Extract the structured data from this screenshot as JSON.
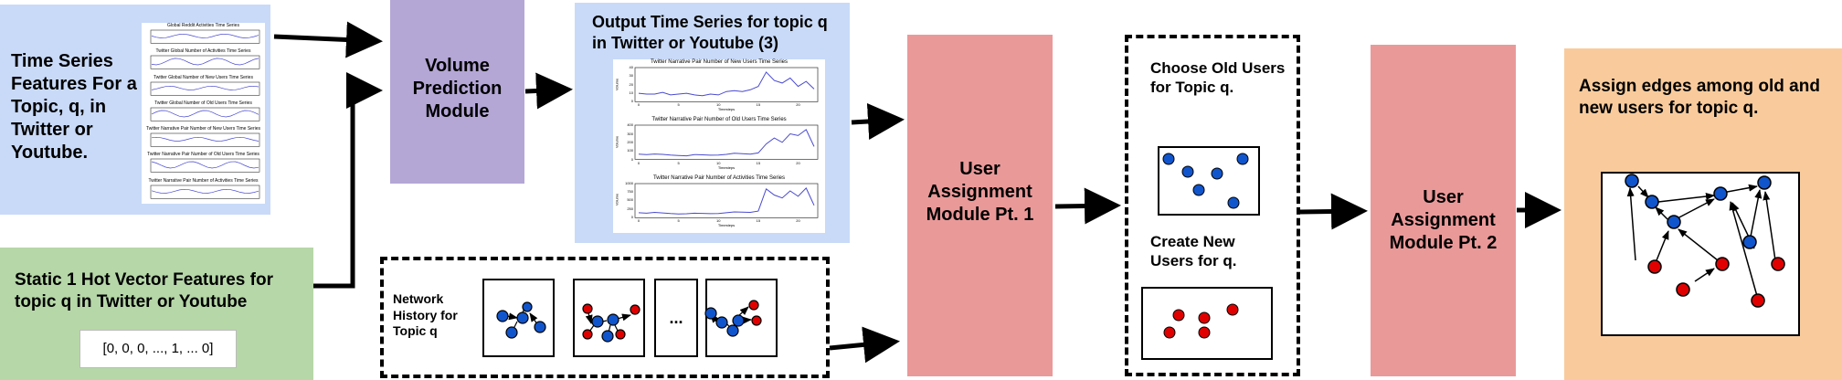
{
  "colors": {
    "blue_panel": "#c9daf8",
    "green_panel": "#b6d7a8",
    "purple_panel": "#b4a7d6",
    "red_panel": "#ea9999",
    "orange_panel": "#f9cb9c",
    "node_blue": "#1155cc",
    "node_red": "#e00000",
    "line_blue": "#4a4ad0"
  },
  "features": {
    "title": "Time Series Features For a Topic, q, in Twitter or Youtube.",
    "thumb_titles": [
      "Global Reddit Activities Time Series",
      "Twitter Global Number of Activities Time Series",
      "Twitter Global Number of New Users Time Series",
      "Twitter Global Number of Old Users Time Series",
      "Twitter Narrative Pair Number of New Users Time Series",
      "Twitter Narrative Pair Number of Old Users Time Series",
      "Twitter Narrative Pair Number of Activities Time Series"
    ]
  },
  "static": {
    "title": "Static 1 Hot Vector Features for topic q in Twitter or Youtube",
    "vector": "[0, 0, 0, ..., 1, ... 0]"
  },
  "volume": {
    "title": "Volume Prediction Module"
  },
  "output": {
    "title": "Output Time Series for topic q in Twitter or Youtube (3)",
    "charts": [
      {
        "title": "Twitter Narrative Pair Number of New Users Time Series",
        "values": [
          10,
          9,
          9,
          11,
          8,
          9,
          10,
          8,
          7,
          9,
          8,
          12,
          13,
          12,
          14,
          18,
          35,
          25,
          22,
          28,
          18,
          24,
          15
        ],
        "y_ticks": [
          "0",
          "10",
          "20",
          "30",
          "40"
        ]
      },
      {
        "title": "Twitter Narrative Pair Number of Old Users Time Series",
        "values": [
          60,
          55,
          62,
          58,
          50,
          45,
          40,
          55,
          52,
          48,
          50,
          58,
          70,
          65,
          60,
          75,
          180,
          250,
          200,
          300,
          280,
          350,
          150
        ],
        "y_ticks": [
          "0",
          "100",
          "200",
          "300",
          "400"
        ]
      },
      {
        "title": "Twitter Narrative Pair Number of Activities Time Series",
        "values": [
          120,
          110,
          130,
          115,
          100,
          90,
          95,
          110,
          105,
          98,
          100,
          120,
          140,
          135,
          130,
          160,
          700,
          550,
          480,
          650,
          520,
          720,
          300
        ],
        "y_ticks": [
          "0",
          "250",
          "500",
          "750",
          "1000"
        ]
      }
    ],
    "x_ticks": [
      "0",
      "5",
      "10",
      "15",
      "20"
    ],
    "xlabel": "Timesteps",
    "ylabel": "Volume"
  },
  "network": {
    "title": "Network History for Topic q",
    "ellipsis": "..."
  },
  "assign1": {
    "title": "User Assignment Module Pt. 1"
  },
  "users": {
    "old_title": "Choose Old Users for Topic q.",
    "new_title": "Create New Users for q."
  },
  "assign2": {
    "title": "User Assignment Module Pt. 2"
  },
  "edges": {
    "title": "Assign edges among old and new users for topic q."
  }
}
